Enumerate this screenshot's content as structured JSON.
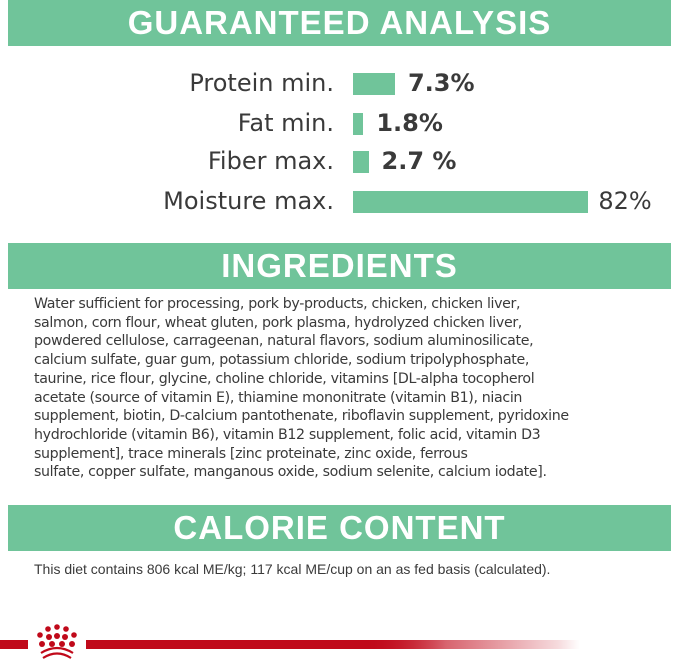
{
  "sections": {
    "analysis_title": "GUARANTEED ANALYSIS",
    "ingredients_title": "INGREDIENTS",
    "calorie_title": "CALORIE CONTENT"
  },
  "analysis": [
    {
      "label": "Protein min.",
      "value": "7.3%",
      "percent": 7.3
    },
    {
      "label": "Fat min.",
      "value": "1.8%",
      "percent": 1.8
    },
    {
      "label": "Fiber max.",
      "value": "2.7 %",
      "percent": 2.7
    },
    {
      "label": "Moisture max.",
      "value": "82%",
      "percent": 82
    }
  ],
  "ingredients_lines": [
    "Water sufficient for processing, pork by-products, chicken, chicken liver,",
    "salmon, corn flour, wheat gluten, pork plasma, hydrolyzed chicken liver,",
    "powdered cellulose, carrageenan, natural flavors, sodium aluminosilicate,",
    "calcium sulfate, guar gum, potassium chloride, sodium tripolyphosphate,",
    "taurine, rice flour, glycine, choline chloride, vitamins [DL-alpha tocopherol",
    "acetate (source of vitamin E), thiamine mononitrate (vitamin B1), niacin",
    "supplement, biotin, D-calcium pantothenate, riboflavin supplement, pyridoxine",
    "hydrochloride (vitamin B6), vitamin B12 supplement, folic acid, vitamin D3",
    "supplement], trace minerals [zinc proteinate, zinc oxide, ferrous",
    "sulfate, copper sulfate, manganous oxide, sodium selenite, calcium iodate]."
  ],
  "calorie_text": "This diet contains 806 kcal ME/kg; 117 kcal ME/cup on an as fed basis (calculated).",
  "logo": {
    "name": "crown-logo",
    "text": "ROYAL CANIN"
  },
  "colors": {
    "accent": "#70c49a",
    "brand_red": "#c0091a",
    "text": "#3a3a3a"
  }
}
